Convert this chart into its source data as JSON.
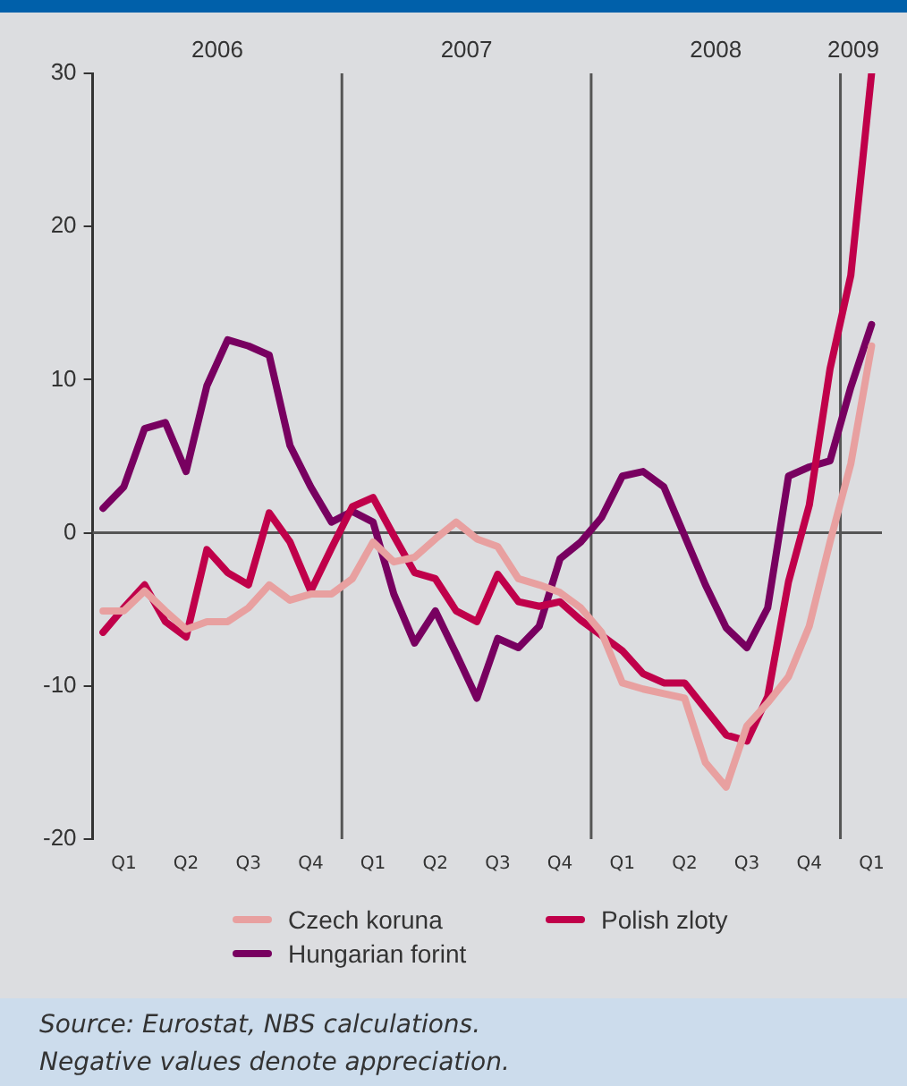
{
  "chart_data": {
    "type": "line",
    "categories": [
      null,
      "Q1",
      null,
      null,
      "Q2",
      null,
      null,
      "Q3",
      null,
      null,
      "Q4",
      null,
      null,
      "Q1",
      null,
      null,
      "Q2",
      null,
      null,
      "Q3",
      null,
      null,
      "Q4",
      null,
      null,
      "Q1",
      null,
      null,
      "Q2",
      null,
      null,
      "Q3",
      null,
      null,
      "Q4",
      null,
      null,
      "Q1"
    ],
    "ylim": [
      -20,
      30
    ],
    "yticks": [
      -20,
      -10,
      0,
      10,
      20,
      30
    ],
    "grid": false,
    "legend": "bottom",
    "marker": "none",
    "line_style": "solid",
    "ref_lines": [
      {
        "axis": "y",
        "value": 0,
        "color": "#555555"
      }
    ],
    "series": [
      {
        "name": "Czech koruna",
        "color": "#e8a0a0",
        "values": [
          -5.1,
          -5.1,
          -3.8,
          -5.1,
          -6.3,
          -5.8,
          -5.8,
          -4.9,
          -3.4,
          -4.4,
          -4.0,
          -4.0,
          -3.0,
          -0.6,
          -1.9,
          -1.6,
          -0.4,
          0.7,
          -0.4,
          -0.9,
          -3.0,
          -3.4,
          -3.9,
          -4.9,
          -6.5,
          -9.8,
          -10.2,
          -10.5,
          -10.8,
          -15.0,
          -16.6,
          -12.6,
          -11.1,
          -9.4,
          -6.1,
          -0.6,
          4.5,
          12.2
        ]
      },
      {
        "name": "Polish zloty",
        "color": "#c0004a",
        "values": [
          -6.5,
          -4.9,
          -3.4,
          -5.8,
          -6.8,
          -1.1,
          -2.6,
          -3.4,
          1.3,
          -0.6,
          -3.8,
          -1.0,
          1.7,
          2.3,
          -0.2,
          -2.6,
          -3.0,
          -5.1,
          -5.8,
          -2.7,
          -4.5,
          -4.8,
          -4.5,
          -5.7,
          -6.7,
          -7.7,
          -9.2,
          -9.8,
          -9.8,
          -11.5,
          -13.2,
          -13.6,
          -10.7,
          -3.2,
          1.8,
          10.7,
          16.8,
          30.0
        ]
      },
      {
        "name": "Hungarian forint",
        "color": "#780060",
        "values": [
          1.6,
          3.0,
          6.8,
          7.2,
          4.0,
          9.6,
          12.6,
          12.2,
          11.6,
          5.7,
          3.0,
          0.7,
          1.4,
          0.7,
          -4.0,
          -7.2,
          -5.1,
          -7.9,
          -10.8,
          -6.9,
          -7.5,
          -6.1,
          -1.7,
          -0.6,
          1.0,
          3.7,
          4.0,
          3.0,
          -0.2,
          -3.4,
          -6.2,
          -7.5,
          -4.9,
          3.7,
          4.3,
          4.7,
          9.5,
          13.6
        ]
      }
    ],
    "annotations": [
      "2006",
      "2007",
      "2008",
      "2009",
      "Source: Eurostat, NBS calculations.",
      "Negative values denote appreciation."
    ]
  }
}
